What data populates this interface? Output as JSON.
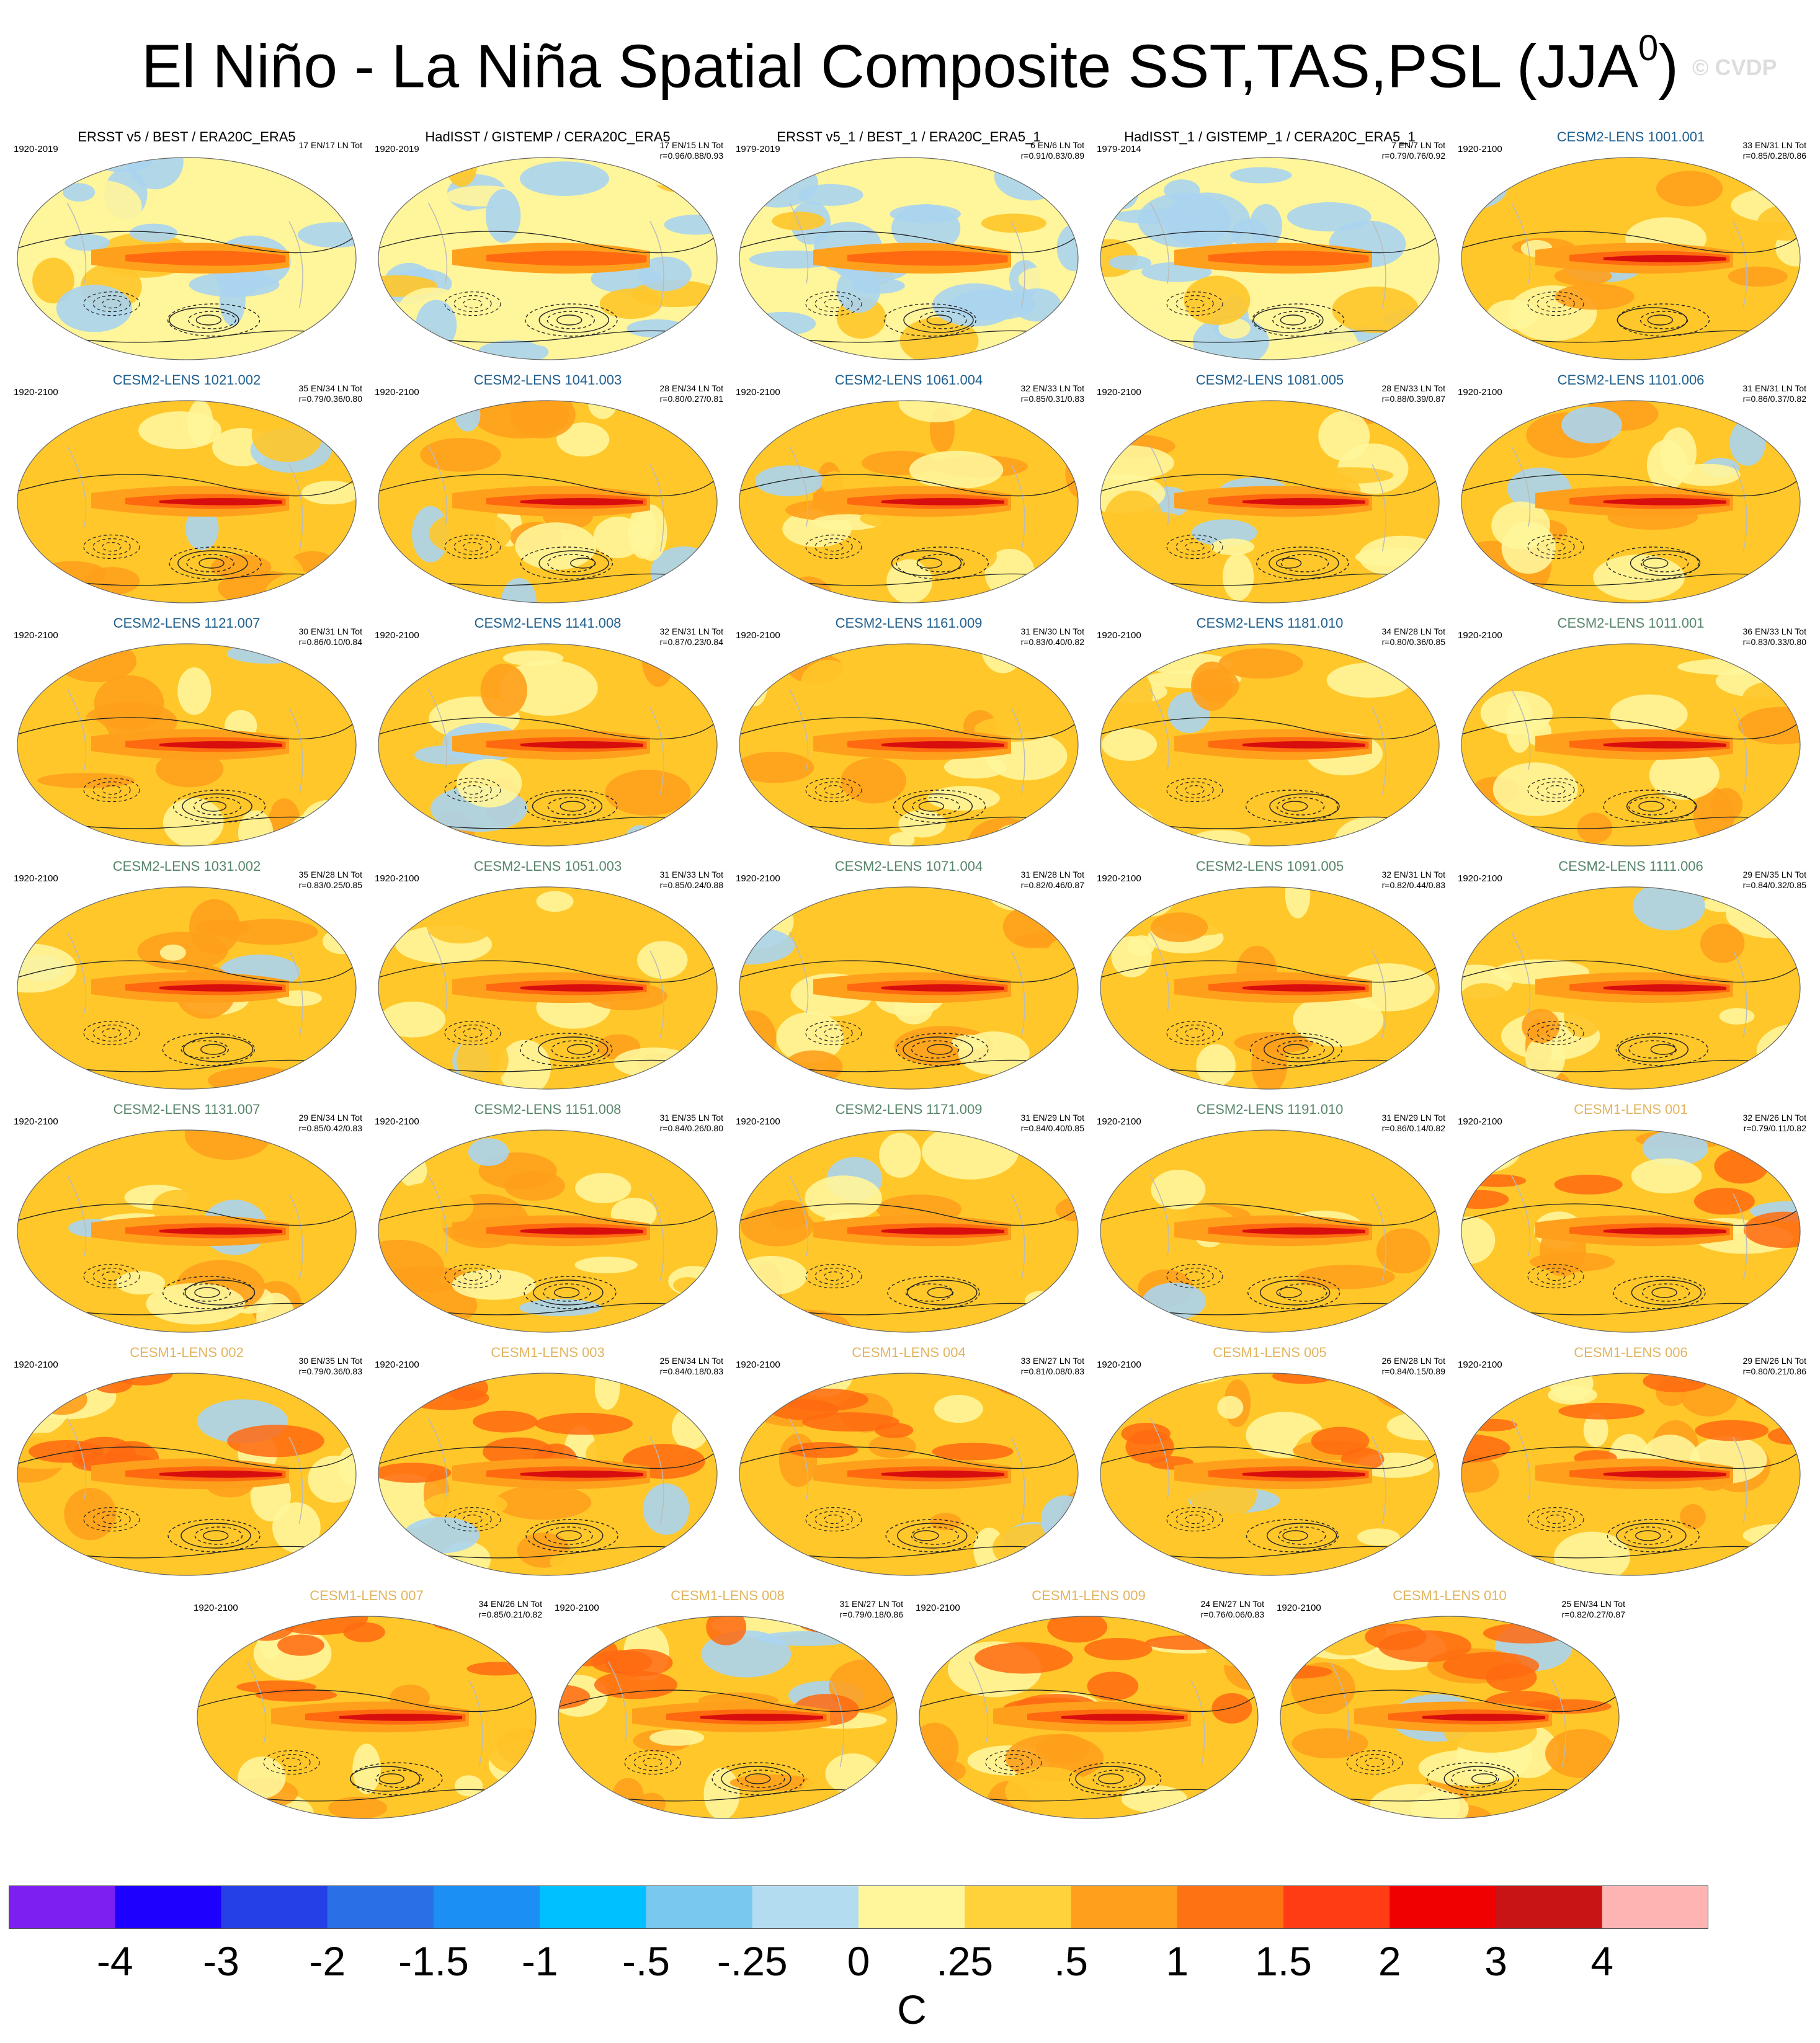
{
  "title": "El Niño - La Niña Spatial Composite SST,TAS,PSL (JJA",
  "title_superscript": "0",
  "title_close": ")",
  "watermark": "© CVDP",
  "colors": {
    "cold": "#aad4ef",
    "neutral": "#fff59a",
    "warm1": "#ffc72a",
    "warm2": "#ffa01c",
    "warm3": "#ff6a10",
    "hot": "#d80e0e",
    "title_obs": "#000000",
    "title_cesm2_first": "#1f5f8e",
    "title_cesm2_second": "#57856a",
    "title_cesm1": "#e1b45e"
  },
  "panels": [
    {
      "title": "ERSST v5 / BEST / ERA20C_ERA5",
      "years": "1920-2019",
      "stats1": "17 EN/17 LN Tot",
      "stats2": "",
      "group": "obs"
    },
    {
      "title": "HadISST / GISTEMP / CERA20C_ERA5",
      "years": "1920-2019",
      "stats1": "17 EN/15 LN Tot",
      "stats2": "r=0.96/0.88/0.93",
      "group": "obs"
    },
    {
      "title": "ERSST v5_1 / BEST_1 / ERA20C_ERA5_1",
      "years": "1979-2019",
      "stats1": "6 EN/6 LN Tot",
      "stats2": "r=0.91/0.83/0.89",
      "group": "obs"
    },
    {
      "title": "HadISST_1 / GISTEMP_1 / CERA20C_ERA5_1",
      "years": "1979-2014",
      "stats1": "7 EN/7 LN Tot",
      "stats2": "r=0.79/0.76/0.92",
      "group": "obs"
    },
    {
      "title": "CESM2-LENS 1001.001",
      "years": "1920-2100",
      "stats1": "33 EN/31 LN Tot",
      "stats2": "r=0.85/0.28/0.86",
      "group": "c2a"
    },
    {
      "title": "CESM2-LENS 1021.002",
      "years": "1920-2100",
      "stats1": "35 EN/34 LN Tot",
      "stats2": "r=0.79/0.36/0.80",
      "group": "c2a"
    },
    {
      "title": "CESM2-LENS 1041.003",
      "years": "1920-2100",
      "stats1": "28 EN/34 LN Tot",
      "stats2": "r=0.80/0.27/0.81",
      "group": "c2a"
    },
    {
      "title": "CESM2-LENS 1061.004",
      "years": "1920-2100",
      "stats1": "32 EN/33 LN Tot",
      "stats2": "r=0.85/0.31/0.83",
      "group": "c2a"
    },
    {
      "title": "CESM2-LENS 1081.005",
      "years": "1920-2100",
      "stats1": "28 EN/33 LN Tot",
      "stats2": "r=0.88/0.39/0.87",
      "group": "c2a"
    },
    {
      "title": "CESM2-LENS 1101.006",
      "years": "1920-2100",
      "stats1": "31 EN/31 LN Tot",
      "stats2": "r=0.86/0.37/0.82",
      "group": "c2a"
    },
    {
      "title": "CESM2-LENS 1121.007",
      "years": "1920-2100",
      "stats1": "30 EN/31 LN Tot",
      "stats2": "r=0.86/0.10/0.84",
      "group": "c2a"
    },
    {
      "title": "CESM2-LENS 1141.008",
      "years": "1920-2100",
      "stats1": "32 EN/31 LN Tot",
      "stats2": "r=0.87/0.23/0.84",
      "group": "c2a"
    },
    {
      "title": "CESM2-LENS 1161.009",
      "years": "1920-2100",
      "stats1": "31 EN/30 LN Tot",
      "stats2": "r=0.83/0.40/0.82",
      "group": "c2a"
    },
    {
      "title": "CESM2-LENS 1181.010",
      "years": "1920-2100",
      "stats1": "34 EN/28 LN Tot",
      "stats2": "r=0.80/0.36/0.85",
      "group": "c2a"
    },
    {
      "title": "CESM2-LENS 1011.001",
      "years": "1920-2100",
      "stats1": "36 EN/33 LN Tot",
      "stats2": "r=0.83/0.33/0.80",
      "group": "c2b"
    },
    {
      "title": "CESM2-LENS 1031.002",
      "years": "1920-2100",
      "stats1": "35 EN/28 LN Tot",
      "stats2": "r=0.83/0.25/0.85",
      "group": "c2b"
    },
    {
      "title": "CESM2-LENS 1051.003",
      "years": "1920-2100",
      "stats1": "31 EN/33 LN Tot",
      "stats2": "r=0.85/0.24/0.88",
      "group": "c2b"
    },
    {
      "title": "CESM2-LENS 1071.004",
      "years": "1920-2100",
      "stats1": "31 EN/28 LN Tot",
      "stats2": "r=0.82/0.46/0.87",
      "group": "c2b"
    },
    {
      "title": "CESM2-LENS 1091.005",
      "years": "1920-2100",
      "stats1": "32 EN/31 LN Tot",
      "stats2": "r=0.82/0.44/0.83",
      "group": "c2b"
    },
    {
      "title": "CESM2-LENS 1111.006",
      "years": "1920-2100",
      "stats1": "29 EN/35 LN Tot",
      "stats2": "r=0.84/0.32/0.85",
      "group": "c2b"
    },
    {
      "title": "CESM2-LENS 1131.007",
      "years": "1920-2100",
      "stats1": "29 EN/34 LN Tot",
      "stats2": "r=0.85/0.42/0.83",
      "group": "c2b"
    },
    {
      "title": "CESM2-LENS 1151.008",
      "years": "1920-2100",
      "stats1": "31 EN/35 LN Tot",
      "stats2": "r=0.84/0.26/0.80",
      "group": "c2b"
    },
    {
      "title": "CESM2-LENS 1171.009",
      "years": "1920-2100",
      "stats1": "31 EN/29 LN Tot",
      "stats2": "r=0.84/0.40/0.85",
      "group": "c2b"
    },
    {
      "title": "CESM2-LENS 1191.010",
      "years": "1920-2100",
      "stats1": "31 EN/29 LN Tot",
      "stats2": "r=0.86/0.14/0.82",
      "group": "c2b"
    },
    {
      "title": "CESM1-LENS 001",
      "years": "1920-2100",
      "stats1": "32 EN/26 LN Tot",
      "stats2": "r=0.79/0.11/0.82",
      "group": "c1"
    },
    {
      "title": "CESM1-LENS 002",
      "years": "1920-2100",
      "stats1": "30 EN/35 LN Tot",
      "stats2": "r=0.79/0.36/0.83",
      "group": "c1"
    },
    {
      "title": "CESM1-LENS 003",
      "years": "1920-2100",
      "stats1": "25 EN/34 LN Tot",
      "stats2": "r=0.84/0.18/0.83",
      "group": "c1"
    },
    {
      "title": "CESM1-LENS 004",
      "years": "1920-2100",
      "stats1": "33 EN/27 LN Tot",
      "stats2": "r=0.81/0.08/0.83",
      "group": "c1"
    },
    {
      "title": "CESM1-LENS 005",
      "years": "1920-2100",
      "stats1": "26 EN/28 LN Tot",
      "stats2": "r=0.84/0.15/0.89",
      "group": "c1"
    },
    {
      "title": "CESM1-LENS 006",
      "years": "1920-2100",
      "stats1": "29 EN/26 LN Tot",
      "stats2": "r=0.80/0.21/0.86",
      "group": "c1"
    },
    {
      "title": "CESM1-LENS 007",
      "years": "1920-2100",
      "stats1": "34 EN/26 LN Tot",
      "stats2": "r=0.85/0.21/0.82",
      "group": "c1"
    },
    {
      "title": "CESM1-LENS 008",
      "years": "1920-2100",
      "stats1": "31 EN/27 LN Tot",
      "stats2": "r=0.79/0.18/0.86",
      "group": "c1"
    },
    {
      "title": "CESM1-LENS 009",
      "years": "1920-2100",
      "stats1": "24 EN/27 LN Tot",
      "stats2": "r=0.76/0.06/0.83",
      "group": "c1"
    },
    {
      "title": "CESM1-LENS 010",
      "years": "1920-2100",
      "stats1": "25 EN/34 LN Tot",
      "stats2": "r=0.82/0.27/0.87",
      "group": "c1"
    }
  ],
  "colorbar": {
    "colors": [
      "#7d1ff0",
      "#1e00ff",
      "#2440e6",
      "#2a6fe6",
      "#1c8ff5",
      "#00c0ff",
      "#78c8f0",
      "#b4dcf0",
      "#fff59a",
      "#ffd23c",
      "#ffa01c",
      "#ff7214",
      "#ff3c14",
      "#f00000",
      "#c81414",
      "#ffb4b4"
    ],
    "labels": [
      "-4",
      "-3",
      "-2",
      "-1.5",
      "-1",
      "-.5",
      "-.25",
      "0",
      ".25",
      ".5",
      "1",
      "1.5",
      "2",
      "3",
      "4"
    ],
    "unit": "C"
  }
}
